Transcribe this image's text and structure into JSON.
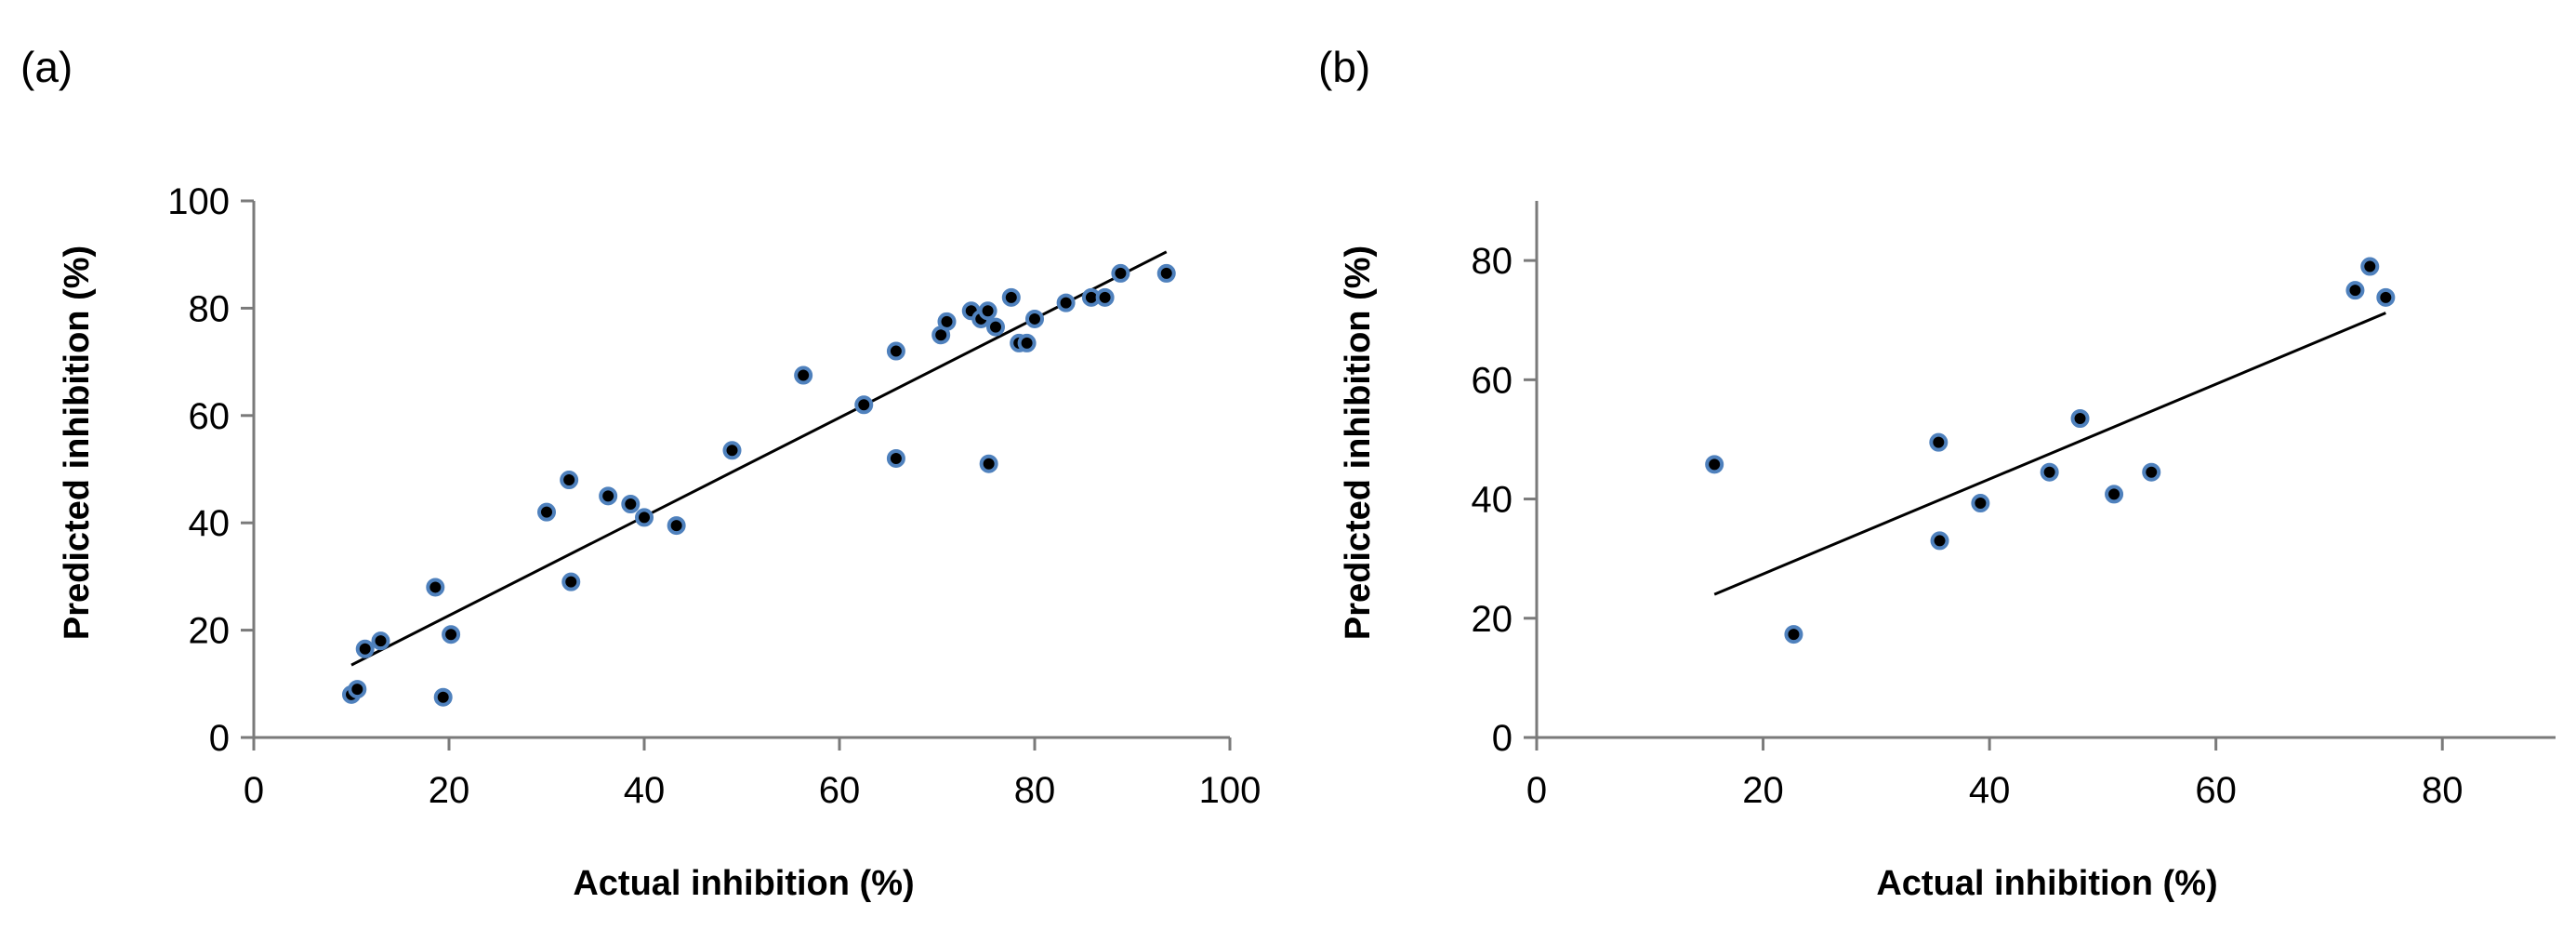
{
  "chart_data": [
    {
      "id": "a",
      "type": "scatter",
      "panel_label": "(a)",
      "xlabel": "Actual inhibition (%)",
      "ylabel": "Predicted inhibition (%)",
      "xlim": [
        0,
        100
      ],
      "ylim": [
        0,
        100
      ],
      "x_ticks": [
        0,
        20,
        40,
        60,
        80,
        100
      ],
      "y_ticks": [
        0,
        20,
        40,
        60,
        80,
        100
      ],
      "points": [
        {
          "x": 10,
          "y": 8
        },
        {
          "x": 10.6,
          "y": 9
        },
        {
          "x": 11.4,
          "y": 16.5
        },
        {
          "x": 13,
          "y": 18
        },
        {
          "x": 18.6,
          "y": 28
        },
        {
          "x": 19.4,
          "y": 7.5
        },
        {
          "x": 20.2,
          "y": 19.2
        },
        {
          "x": 30,
          "y": 42
        },
        {
          "x": 32.3,
          "y": 48
        },
        {
          "x": 32.5,
          "y": 29
        },
        {
          "x": 36.3,
          "y": 45
        },
        {
          "x": 38.6,
          "y": 43.5
        },
        {
          "x": 40,
          "y": 41
        },
        {
          "x": 43.3,
          "y": 39.5
        },
        {
          "x": 49,
          "y": 53.5
        },
        {
          "x": 56.3,
          "y": 67.5
        },
        {
          "x": 62.5,
          "y": 62
        },
        {
          "x": 65.8,
          "y": 72
        },
        {
          "x": 65.8,
          "y": 52
        },
        {
          "x": 70.4,
          "y": 75
        },
        {
          "x": 71,
          "y": 77.5
        },
        {
          "x": 73.5,
          "y": 79.5
        },
        {
          "x": 74.5,
          "y": 78
        },
        {
          "x": 75.2,
          "y": 79.5
        },
        {
          "x": 75.3,
          "y": 51
        },
        {
          "x": 76,
          "y": 76.5
        },
        {
          "x": 77.6,
          "y": 82
        },
        {
          "x": 78.4,
          "y": 73.5
        },
        {
          "x": 79.2,
          "y": 73.5
        },
        {
          "x": 80,
          "y": 78
        },
        {
          "x": 83.2,
          "y": 81
        },
        {
          "x": 85.8,
          "y": 82
        },
        {
          "x": 87.2,
          "y": 82
        },
        {
          "x": 88.8,
          "y": 86.5
        },
        {
          "x": 93.5,
          "y": 86.5
        }
      ],
      "trendline": {
        "x": [
          10,
          93.5
        ],
        "y": [
          13.5,
          90.5
        ]
      }
    },
    {
      "id": "b",
      "type": "scatter",
      "panel_label": "(b)",
      "xlabel": "Actual inhibition (%)",
      "ylabel": "Predicted inhibition (%)",
      "xlim": [
        0,
        90
      ],
      "ylim": [
        0,
        90
      ],
      "x_ticks": [
        0,
        20,
        40,
        60,
        80
      ],
      "y_ticks": [
        0,
        20,
        40,
        60,
        80
      ],
      "points": [
        {
          "x": 15.7,
          "y": 45.8
        },
        {
          "x": 22.7,
          "y": 17.3
        },
        {
          "x": 35.5,
          "y": 49.5
        },
        {
          "x": 35.6,
          "y": 33
        },
        {
          "x": 39.2,
          "y": 39.3
        },
        {
          "x": 45.3,
          "y": 44.5
        },
        {
          "x": 48,
          "y": 53.5
        },
        {
          "x": 51,
          "y": 40.8
        },
        {
          "x": 54.3,
          "y": 44.5
        },
        {
          "x": 72.3,
          "y": 75
        },
        {
          "x": 73.6,
          "y": 79
        },
        {
          "x": 75,
          "y": 73.8
        }
      ],
      "trendline": {
        "x": [
          15.7,
          75
        ],
        "y": [
          24,
          71.2
        ]
      }
    }
  ]
}
